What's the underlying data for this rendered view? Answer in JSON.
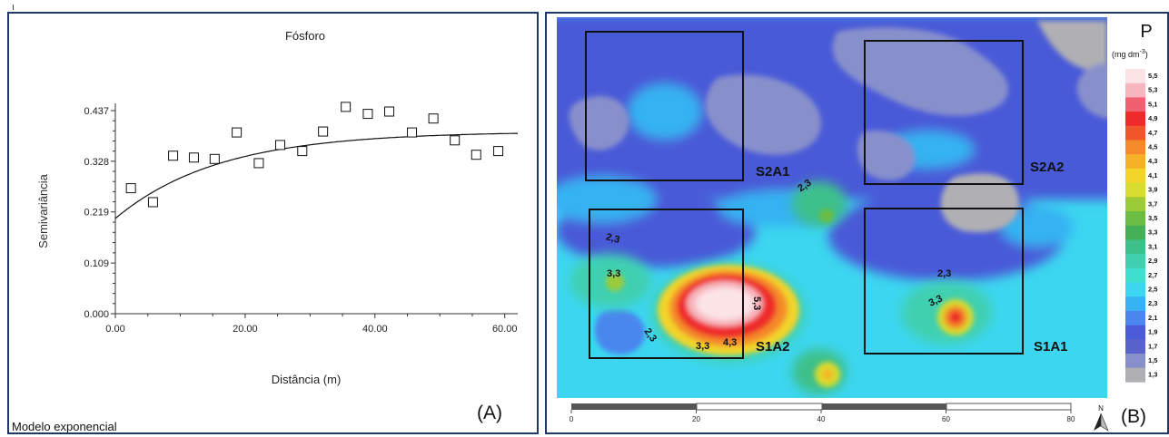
{
  "panel_a": {
    "label": "(A)",
    "model_note": "Modelo exponencial"
  },
  "panel_b": {
    "label": "(B)",
    "legend_title": "P",
    "legend_unit": "(mg dm",
    "legend_unit_sup": "-3",
    "legend_unit_close": ")",
    "legend_levels": [
      "5,5",
      "5,3",
      "5,1",
      "4,9",
      "4,7",
      "4,5",
      "4,3",
      "4,1",
      "3,9",
      "3,7",
      "3,5",
      "3,3",
      "3,1",
      "2,9",
      "2,7",
      "2,5",
      "2,3",
      "2,1",
      "1,9",
      "1,7",
      "1,5",
      "1,3"
    ],
    "legend_colors": [
      "#fbe3e6",
      "#f7b5bd",
      "#f06070",
      "#ee2a2a",
      "#f0562a",
      "#f48a2a",
      "#f6b226",
      "#f2d42a",
      "#d8dc2e",
      "#9ccb38",
      "#6cbd44",
      "#44b055",
      "#3ec08a",
      "#40d0b0",
      "#40e0d0",
      "#3cd6f0",
      "#36b2f2",
      "#4a86ee",
      "#4a5ad8",
      "#5a62cc",
      "#8890cc",
      "#b0b0b4"
    ],
    "plots": [
      {
        "id": "S2A1",
        "label": "S2A1"
      },
      {
        "id": "S2A2",
        "label": "S2A2"
      },
      {
        "id": "S1A2",
        "label": "S1A2"
      },
      {
        "id": "S1A1",
        "label": "S1A1"
      }
    ],
    "contour_labels": [
      "2,3",
      "2,3",
      "3,3",
      "2,3",
      "3,3",
      "4,3",
      "5,3",
      "2,3",
      "3,3"
    ],
    "scale_ticks": [
      "0",
      "20",
      "40",
      "60",
      "80"
    ],
    "north_label": "N"
  },
  "chart_data": {
    "type": "scatter",
    "title": "Fósforo",
    "xlabel": "Distância (m)",
    "ylabel": "Semivariância",
    "xlim": [
      0,
      62
    ],
    "ylim": [
      0,
      0.437
    ],
    "x_ticks": [
      0,
      20,
      40,
      60
    ],
    "x_tick_labels": [
      "0.00",
      "20.00",
      "40.00",
      "60.00"
    ],
    "y_ticks": [
      0,
      0.109,
      0.219,
      0.328,
      0.437
    ],
    "y_tick_labels": [
      "0.000",
      "0.109",
      "0.219",
      "0.328",
      "0.437"
    ],
    "grid": false,
    "points": {
      "x": [
        2.4,
        5.8,
        8.9,
        12.1,
        15.3,
        18.7,
        22.1,
        25.4,
        28.8,
        32.0,
        35.5,
        38.9,
        42.2,
        45.7,
        49.0,
        52.3,
        55.6,
        59.0
      ],
      "y": [
        0.27,
        0.24,
        0.34,
        0.336,
        0.333,
        0.39,
        0.324,
        0.363,
        0.35,
        0.392,
        0.445,
        0.43,
        0.435,
        0.39,
        0.42,
        0.373,
        0.342,
        0.35
      ]
    },
    "model": {
      "name": "Modelo exponencial",
      "nugget": 0.205,
      "sill": 0.392,
      "range": 16
    }
  }
}
